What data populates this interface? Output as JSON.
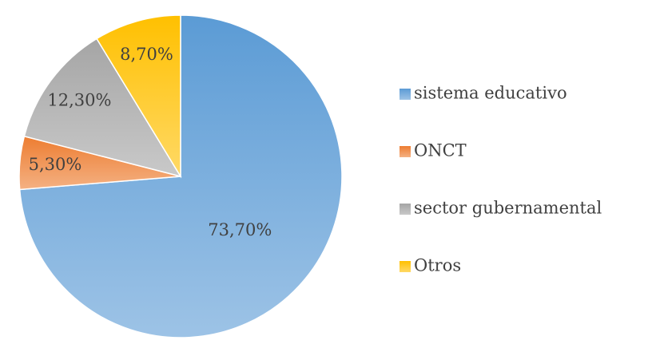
{
  "chart_data": {
    "type": "pie",
    "categories": [
      "sistema educativo",
      "ONCT",
      "sector gubernamental",
      "Otros"
    ],
    "values": [
      73.7,
      5.3,
      12.3,
      8.7
    ],
    "value_labels": [
      "73,70%",
      "5,30%",
      "12,30%",
      "8,70%"
    ],
    "colors": [
      "#5b9bd5",
      "#ed7d31",
      "#a5a5a5",
      "#ffc000"
    ],
    "legend": "right"
  }
}
